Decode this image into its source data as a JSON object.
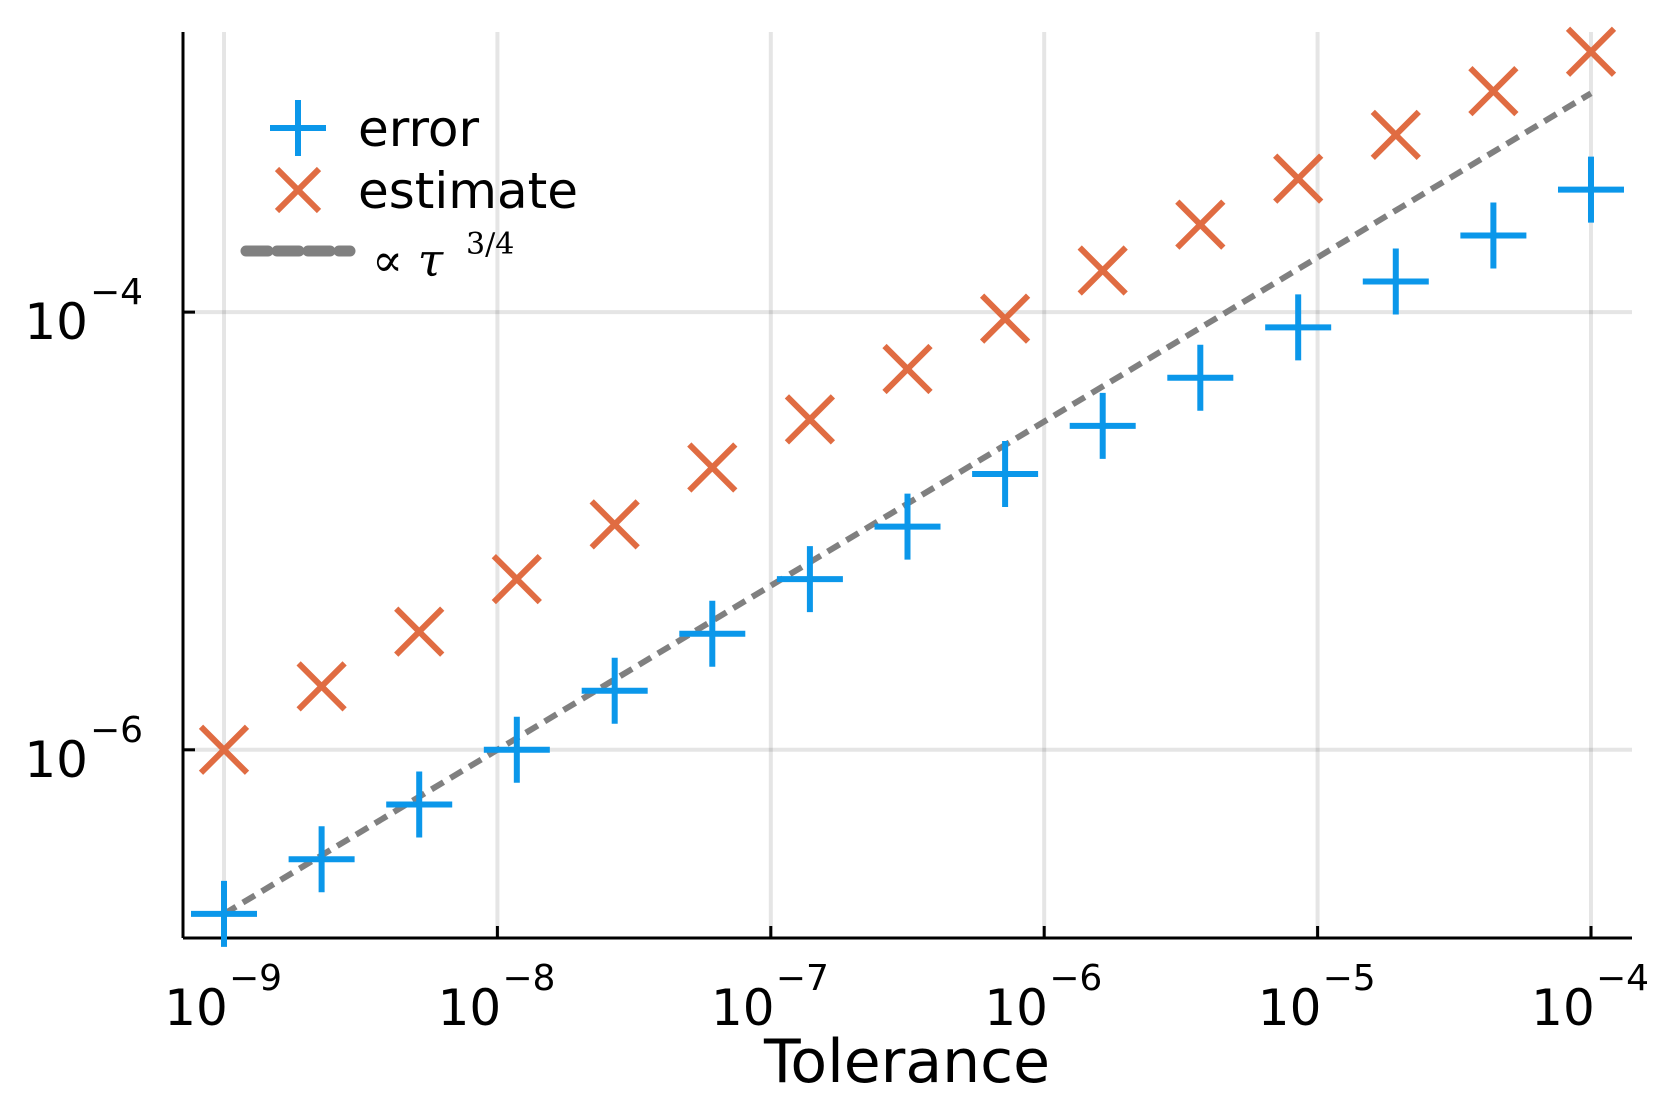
{
  "chart_data": {
    "type": "scatter",
    "xscale": "log",
    "yscale": "log",
    "xlabel": "Tolerance",
    "ylabel": "",
    "xlim_log10": [
      -9.15,
      -3.85
    ],
    "ylim_log10": [
      -6.86,
      -2.72
    ],
    "grid": true,
    "legend_position": "top-left",
    "x_ticks": [
      {
        "base": "10",
        "exp": "−9",
        "value_log10": -9
      },
      {
        "base": "10",
        "exp": "−8",
        "value_log10": -8
      },
      {
        "base": "10",
        "exp": "−7",
        "value_log10": -7
      },
      {
        "base": "10",
        "exp": "−6",
        "value_log10": -6
      },
      {
        "base": "10",
        "exp": "−5",
        "value_log10": -5
      },
      {
        "base": "10",
        "exp": "−4",
        "value_log10": -4
      }
    ],
    "y_ticks": [
      {
        "base": "10",
        "exp": "−4",
        "value_log10": -4
      },
      {
        "base": "10",
        "exp": "−6",
        "value_log10": -6
      }
    ],
    "x_log10": [
      -9.0,
      -8.643,
      -8.286,
      -7.929,
      -7.571,
      -7.214,
      -6.857,
      -6.5,
      -6.143,
      -5.786,
      -5.429,
      -5.071,
      -4.714,
      -4.357,
      -4.0
    ],
    "series": [
      {
        "name": "error",
        "marker": "plus",
        "color": "#0b97ea",
        "y_log10": [
          -6.75,
          -6.5,
          -6.25,
          -6.0,
          -5.73,
          -5.47,
          -5.22,
          -4.98,
          -4.74,
          -4.52,
          -4.3,
          -4.07,
          -3.86,
          -3.65,
          -3.44
        ]
      },
      {
        "name": "estimate",
        "marker": "x",
        "color": "#e06c42",
        "y_log10": [
          -6.0,
          -5.71,
          -5.46,
          -5.22,
          -4.97,
          -4.71,
          -4.49,
          -4.26,
          -4.03,
          -3.81,
          -3.6,
          -3.39,
          -3.19,
          -2.99,
          -2.81
        ]
      }
    ],
    "reference_line": {
      "name": "∝ τ",
      "exponent_label": "3/4",
      "color": "#808080",
      "style": "dashed",
      "x_log10": [
        -9.0,
        -4.0
      ],
      "y_log10": [
        -6.75,
        -3.0
      ]
    }
  }
}
